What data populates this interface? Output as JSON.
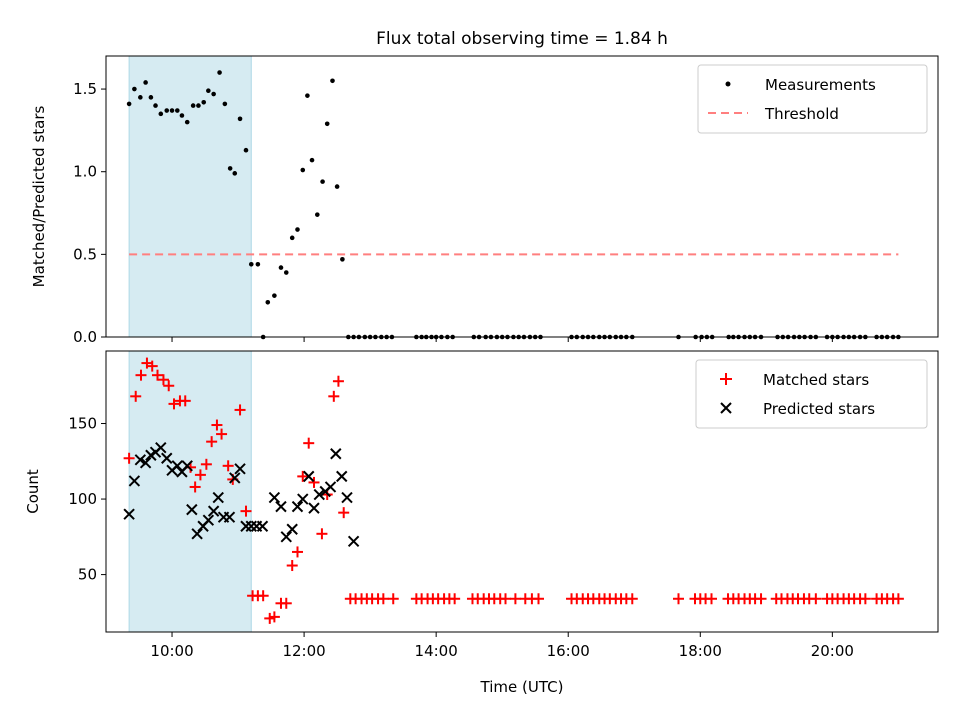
{
  "chart_data": [
    {
      "type": "scatter",
      "title": "Flux total observing time = 1.84 h",
      "ylabel": "Matched/Predicted stars",
      "xlabel": "",
      "xlim": [
        9.0,
        21.6
      ],
      "ylim": [
        0,
        1.7
      ],
      "yticks": [
        0.0,
        0.5,
        1.0,
        1.5
      ],
      "ytick_labels": [
        "0.0",
        "0.5",
        "1.0",
        "1.5"
      ],
      "grid": false,
      "legend": "top-right",
      "shaded_interval": {
        "x": [
          9.35,
          11.2
        ],
        "color": "#add8e6"
      },
      "threshold": {
        "name": "Threshold",
        "y": 0.5,
        "x": [
          9.35,
          21.0
        ],
        "color": "#ff7f7f",
        "style": "dashed"
      },
      "series": [
        {
          "name": "Measurements",
          "color": "#000000",
          "marker": "dot",
          "x": [
            9.35,
            9.43,
            9.52,
            9.6,
            9.68,
            9.75,
            9.83,
            9.92,
            10.0,
            10.08,
            10.15,
            10.23,
            10.32,
            10.4,
            10.48,
            10.55,
            10.63,
            10.72,
            10.8,
            10.88,
            10.95,
            11.03,
            11.12,
            11.2,
            11.3,
            11.38,
            11.45,
            11.55,
            11.65,
            11.73,
            11.82,
            11.9,
            11.98,
            12.05,
            12.12,
            12.2,
            12.28,
            12.35,
            12.43,
            12.5,
            12.58,
            12.67,
            12.75,
            12.83,
            12.92,
            13.0,
            13.08,
            13.17,
            13.25,
            13.33,
            13.7,
            13.78,
            13.85,
            13.93,
            14.0,
            14.08,
            14.17,
            14.25,
            14.57,
            14.65,
            14.75,
            14.83,
            14.92,
            15.0,
            15.08,
            15.17,
            15.25,
            15.33,
            15.42,
            15.5,
            15.58,
            16.05,
            16.13,
            16.22,
            16.3,
            16.38,
            16.47,
            16.55,
            16.63,
            16.72,
            16.8,
            16.88,
            16.97,
            17.67,
            17.93,
            18.02,
            18.1,
            18.18,
            18.43,
            18.5,
            18.58,
            18.67,
            18.75,
            18.83,
            18.92,
            19.17,
            19.25,
            19.33,
            19.42,
            19.5,
            19.58,
            19.67,
            19.75,
            19.92,
            20.0,
            20.08,
            20.17,
            20.25,
            20.33,
            20.42,
            20.5,
            20.67,
            20.75,
            20.83,
            20.92,
            21.0
          ],
          "y": [
            1.41,
            1.5,
            1.45,
            1.54,
            1.45,
            1.4,
            1.35,
            1.37,
            1.37,
            1.37,
            1.34,
            1.3,
            1.4,
            1.4,
            1.42,
            1.49,
            1.47,
            1.6,
            1.41,
            1.02,
            0.99,
            1.32,
            1.13,
            0.44,
            0.44,
            0.0,
            0.21,
            0.25,
            0.42,
            0.39,
            0.6,
            0.65,
            1.01,
            1.46,
            1.07,
            0.74,
            0.94,
            1.29,
            1.55,
            0.91,
            0.47,
            0.0,
            0.0,
            0.0,
            0.0,
            0.0,
            0.0,
            0.0,
            0.0,
            0.0,
            0.0,
            0.0,
            0.0,
            0.0,
            0.0,
            0.0,
            0.0,
            0.0,
            0.0,
            0.0,
            0.0,
            0.0,
            0.0,
            0.0,
            0.0,
            0.0,
            0.0,
            0.0,
            0.0,
            0.0,
            0.0,
            0.0,
            0.0,
            0.0,
            0.0,
            0.0,
            0.0,
            0.0,
            0.0,
            0.0,
            0.0,
            0.0,
            0.0,
            0.0,
            0.0,
            0.0,
            0.0,
            0.0,
            0.0,
            0.0,
            0.0,
            0.0,
            0.0,
            0.0,
            0.0,
            0.0,
            0.0,
            0.0,
            0.0,
            0.0,
            0.0,
            0.0,
            0.0,
            0.0,
            0.0,
            0.0,
            0.0,
            0.0,
            0.0,
            0.0,
            0.0,
            0.0,
            0.0,
            0.0,
            0.0,
            0.0
          ]
        }
      ]
    },
    {
      "type": "scatter",
      "title": "",
      "xlabel": "Time (UTC)",
      "ylabel": "Count",
      "xlim": [
        9.0,
        21.6
      ],
      "ylim": [
        12,
        198
      ],
      "xticks": [
        10,
        12,
        14,
        16,
        18,
        20
      ],
      "xtick_labels": [
        "10:00",
        "12:00",
        "14:00",
        "16:00",
        "18:00",
        "20:00"
      ],
      "yticks": [
        50,
        100,
        150
      ],
      "ytick_labels": [
        "50",
        "100",
        "150"
      ],
      "grid": false,
      "legend": "top-right",
      "shaded_interval": {
        "x": [
          9.35,
          11.2
        ],
        "color": "#add8e6"
      },
      "series": [
        {
          "name": "Matched stars",
          "color": "#ff0000",
          "marker": "plus",
          "x": [
            9.35,
            9.45,
            9.53,
            9.62,
            9.7,
            9.78,
            9.87,
            9.95,
            10.03,
            10.12,
            10.2,
            10.28,
            10.35,
            10.43,
            10.52,
            10.6,
            10.68,
            10.75,
            10.85,
            10.92,
            11.03,
            11.12,
            11.22,
            11.3,
            11.38,
            11.48,
            11.55,
            11.65,
            11.73,
            11.82,
            11.9,
            11.98,
            12.07,
            12.15,
            12.27,
            12.35,
            12.45,
            12.52,
            12.6
          ],
          "y": [
            127,
            168,
            182,
            190,
            188,
            182,
            179,
            175,
            163,
            165,
            165,
            121,
            108,
            116,
            123,
            138,
            149,
            143,
            122,
            113,
            159,
            92,
            36,
            36,
            36,
            21,
            22,
            31,
            31,
            56,
            65,
            115,
            137,
            111,
            77,
            103,
            168,
            178,
            91
          ]
        },
        {
          "name": "",
          "color": "#ff0000",
          "marker": "plus",
          "x": [
            12.7,
            12.78,
            12.87,
            12.95,
            13.03,
            13.12,
            13.2,
            13.35,
            13.7,
            13.78,
            13.87,
            13.95,
            14.03,
            14.12,
            14.2,
            14.28,
            14.55,
            14.63,
            14.72,
            14.8,
            14.88,
            14.97,
            15.05,
            15.2,
            15.35,
            15.45,
            15.55,
            16.05,
            16.13,
            16.22,
            16.3,
            16.38,
            16.47,
            16.55,
            16.63,
            16.72,
            16.8,
            16.88,
            16.97,
            17.67,
            17.92,
            18.0,
            18.08,
            18.17,
            18.42,
            18.5,
            18.58,
            18.67,
            18.75,
            18.83,
            18.92,
            19.15,
            19.23,
            19.32,
            19.4,
            19.48,
            19.57,
            19.65,
            19.75,
            19.92,
            20.0,
            20.08,
            20.17,
            20.25,
            20.33,
            20.42,
            20.5,
            20.67,
            20.75,
            20.83,
            20.92,
            21.0
          ],
          "y": [
            34,
            34,
            34,
            34,
            34,
            34,
            34,
            34,
            34,
            34,
            34,
            34,
            34,
            34,
            34,
            34,
            34,
            34,
            34,
            34,
            34,
            34,
            34,
            34,
            34,
            34,
            34,
            34,
            34,
            34,
            34,
            34,
            34,
            34,
            34,
            34,
            34,
            34,
            34,
            34,
            34,
            34,
            34,
            34,
            34,
            34,
            34,
            34,
            34,
            34,
            34,
            34,
            34,
            34,
            34,
            34,
            34,
            34,
            34,
            34,
            34,
            34,
            34,
            34,
            34,
            34,
            34,
            34,
            34,
            34,
            34,
            34
          ]
        },
        {
          "name": "Predicted stars",
          "color": "#000000",
          "marker": "cross",
          "x": [
            9.35,
            9.43,
            9.52,
            9.6,
            9.68,
            9.75,
            9.83,
            9.92,
            10.0,
            10.08,
            10.15,
            10.23,
            10.3,
            10.38,
            10.47,
            10.55,
            10.63,
            10.7,
            10.78,
            10.87,
            10.95,
            11.03,
            11.12,
            11.2,
            11.28,
            11.37,
            11.55,
            11.65,
            11.73,
            11.82,
            11.9,
            11.98,
            12.07,
            12.15,
            12.23,
            12.32,
            12.4,
            12.48,
            12.57,
            12.65,
            12.75
          ],
          "y": [
            90,
            112,
            126,
            124,
            129,
            131,
            134,
            127,
            119,
            122,
            118,
            122,
            93,
            77,
            82,
            86,
            92,
            101,
            88,
            88,
            114,
            120,
            82,
            82,
            82,
            82,
            101,
            95,
            75,
            80,
            95,
            100,
            115,
            94,
            103,
            105,
            108,
            130,
            115,
            101,
            72
          ]
        }
      ]
    }
  ]
}
